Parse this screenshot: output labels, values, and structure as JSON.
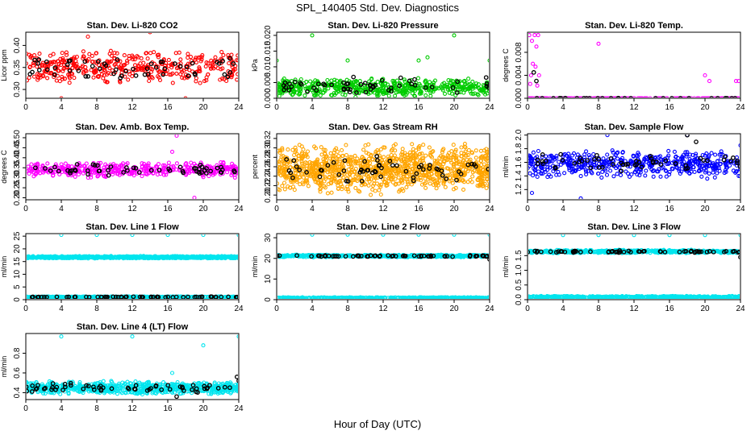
{
  "figure": {
    "title": "SPL_140405  Std. Dev. Diagnostics",
    "xlabel": "Hour of Day (UTC)"
  },
  "colors": {
    "red": "#ff0000",
    "green": "#00cc00",
    "magenta": "#ff00ff",
    "orange": "#ffa500",
    "blue": "#0000ff",
    "cyan": "#00e5ee",
    "black": "#000000"
  },
  "chart_data": [
    {
      "type": "scatter",
      "title": "Stan. Dev. Li-820 CO2",
      "ylabel": "Licor ppm",
      "xlim": [
        0,
        24
      ],
      "xticks": [
        0,
        4,
        8,
        12,
        16,
        20,
        24
      ],
      "ylim": [
        0.28,
        0.43
      ],
      "yticks": [
        0.3,
        0.35,
        0.4
      ],
      "series": [
        {
          "color": "red",
          "band": [
            0.31,
            0.39
          ],
          "count": 420,
          "outliers": [
            [
              7,
              0.42
            ],
            [
              14,
              0.43
            ],
            [
              4,
              0.28
            ],
            [
              18,
              0.28
            ]
          ]
        },
        {
          "color": "black",
          "band": [
            0.32,
            0.38
          ],
          "count": 55,
          "outliers": []
        }
      ]
    },
    {
      "type": "scatter",
      "title": "Stan. Dev. Li-820 Pressure",
      "ylabel": "kPa",
      "xlim": [
        0,
        24
      ],
      "xticks": [
        0,
        4,
        8,
        12,
        16,
        20,
        24
      ],
      "ylim": [
        0,
        0.021
      ],
      "yticks": [
        0.0,
        0.005,
        0.01,
        0.015,
        0.02
      ],
      "series": [
        {
          "color": "green",
          "band": [
            0.0,
            0.0065
          ],
          "count": 520,
          "outliers": [
            [
              0,
              0.012
            ],
            [
              4,
              0.02
            ],
            [
              8,
              0.012
            ],
            [
              16,
              0.012
            ],
            [
              17,
              0.013
            ],
            [
              20,
              0.02
            ],
            [
              24,
              0.012
            ]
          ]
        },
        {
          "color": "black",
          "band": [
            0.001,
            0.007
          ],
          "count": 55,
          "outliers": []
        }
      ]
    },
    {
      "type": "scatter",
      "title": "Stan. Dev. Li-820 Temp.",
      "ylabel": "degrees C",
      "xlim": [
        0,
        24
      ],
      "xticks": [
        0,
        4,
        8,
        12,
        16,
        20,
        24
      ],
      "ylim": [
        0,
        0.0115
      ],
      "yticks": [
        0.0,
        0.004,
        0.008
      ],
      "series": [
        {
          "color": "magenta",
          "band": [
            0,
            0
          ],
          "count": 220,
          "outliers": [
            [
              0.2,
              0.011
            ],
            [
              0.5,
              0.01
            ],
            [
              0.8,
              0.011
            ],
            [
              1.0,
              0.009
            ],
            [
              1.2,
              0.011
            ],
            [
              0.6,
              0.006
            ],
            [
              0.9,
              0.0055
            ],
            [
              1.3,
              0.004
            ],
            [
              0.4,
              0.004
            ],
            [
              0.3,
              0.0025
            ],
            [
              1.1,
              0.0022
            ],
            [
              8,
              0.0095
            ],
            [
              20,
              0.004
            ],
            [
              20.5,
              0.003
            ],
            [
              23.5,
              0.003
            ],
            [
              23.8,
              0.003
            ]
          ]
        },
        {
          "color": "black",
          "band": [
            0,
            0
          ],
          "count": 30,
          "outliers": [
            [
              1.0,
              0.003
            ],
            [
              0.7,
              0.0045
            ]
          ]
        }
      ]
    },
    {
      "type": "scatter",
      "title": "Stan. Dev. Amb. Box Temp.",
      "ylabel": "degrees C",
      "xlim": [
        0,
        24
      ],
      "xticks": [
        0,
        4,
        8,
        12,
        16,
        20,
        24
      ],
      "ylim": [
        0.19,
        0.52
      ],
      "yticks": [
        0.2,
        0.25,
        0.3,
        0.35,
        0.4,
        0.45,
        0.5
      ],
      "series": [
        {
          "color": "magenta",
          "band": [
            0.3,
            0.38
          ],
          "count": 420,
          "outliers": [
            [
              17,
              0.51
            ],
            [
              16.5,
              0.43
            ],
            [
              19,
              0.2
            ]
          ]
        },
        {
          "color": "black",
          "band": [
            0.31,
            0.37
          ],
          "count": 55,
          "outliers": []
        }
      ]
    },
    {
      "type": "scatter",
      "title": "Stan. Dev. Gas Stream RH",
      "ylabel": "percent",
      "xlim": [
        0,
        24
      ],
      "xticks": [
        0,
        4,
        8,
        12,
        16,
        20,
        24
      ],
      "ylim": [
        0.19,
        0.33
      ],
      "yticks": [
        0.2,
        0.22,
        0.24,
        0.26,
        0.28,
        0.3,
        0.32
      ],
      "series": [
        {
          "color": "orange",
          "band": [
            0.2,
            0.31
          ],
          "count": 1100,
          "outliers": []
        },
        {
          "color": "black",
          "band": [
            0.22,
            0.29
          ],
          "count": 60,
          "outliers": []
        }
      ]
    },
    {
      "type": "scatter",
      "title": "Stan. Dev. Sample Flow",
      "ylabel": "ml/min",
      "xlim": [
        0,
        24
      ],
      "xticks": [
        0,
        4,
        8,
        12,
        16,
        20,
        24
      ],
      "ylim": [
        1.05,
        2.02
      ],
      "yticks": [
        1.2,
        1.4,
        1.6,
        1.8,
        2.0
      ],
      "series": [
        {
          "color": "blue",
          "band": [
            1.35,
            1.8
          ],
          "count": 520,
          "outliers": [
            [
              6,
              1.07
            ],
            [
              0.5,
              1.15
            ],
            [
              18,
              2.0
            ],
            [
              9,
              2.0
            ],
            [
              24,
              1.85
            ]
          ]
        },
        {
          "color": "black",
          "band": [
            1.45,
            1.75
          ],
          "count": 55,
          "outliers": [
            [
              18,
              2.0
            ],
            [
              19,
              1.9
            ]
          ]
        }
      ]
    },
    {
      "type": "scatter",
      "title": "Stan. Dev. Line 1 Flow",
      "ylabel": "ml/min",
      "xlim": [
        0,
        24
      ],
      "xticks": [
        0,
        4,
        8,
        12,
        16,
        20,
        24
      ],
      "ylim": [
        0,
        26
      ],
      "yticks": [
        0,
        5,
        10,
        15,
        20,
        25
      ],
      "series": [
        {
          "color": "cyan",
          "band": [
            16.2,
            17.2
          ],
          "count": 800,
          "outliers": [
            [
              4,
              25.5
            ],
            [
              8,
              25.5
            ],
            [
              12,
              25.5
            ],
            [
              16,
              25.5
            ],
            [
              20,
              25.5
            ],
            [
              24,
              25.5
            ]
          ]
        },
        {
          "color": "cyan",
          "band": [
            0.8,
            1.3
          ],
          "count": 500,
          "outliers": []
        },
        {
          "color": "black",
          "band": [
            0.9,
            1.2
          ],
          "count": 60,
          "outliers": []
        }
      ]
    },
    {
      "type": "scatter",
      "title": "Stan. Dev. Line 2 Flow",
      "ylabel": "ml/min",
      "xlim": [
        0,
        24
      ],
      "xticks": [
        0,
        4,
        8,
        12,
        16,
        20,
        24
      ],
      "ylim": [
        0,
        32
      ],
      "yticks": [
        0,
        10,
        20,
        30
      ],
      "series": [
        {
          "color": "cyan",
          "band": [
            20.5,
            21.8
          ],
          "count": 600,
          "outliers": [
            [
              4,
              31.5
            ],
            [
              8,
              31.5
            ],
            [
              12,
              31.5
            ],
            [
              16,
              31.5
            ],
            [
              20,
              31.5
            ],
            [
              24,
              31.5
            ]
          ]
        },
        {
          "color": "cyan",
          "band": [
            0.5,
            1.2
          ],
          "count": 500,
          "outliers": []
        },
        {
          "color": "black",
          "band": [
            20.8,
            21.5
          ],
          "count": 60,
          "outliers": [
            [
              24,
              19.5
            ]
          ]
        }
      ]
    },
    {
      "type": "scatter",
      "title": "Stan. Dev. Line 3 Flow",
      "ylabel": "ml/min",
      "xlim": [
        0,
        24
      ],
      "xticks": [
        0,
        4,
        8,
        12,
        16,
        20,
        24
      ],
      "ylim": [
        0,
        2.25
      ],
      "yticks": [
        0.0,
        0.5,
        1.0,
        1.5
      ],
      "series": [
        {
          "color": "cyan",
          "band": [
            1.58,
            1.7
          ],
          "count": 500,
          "outliers": [
            [
              4,
              2.2
            ],
            [
              8,
              2.2
            ],
            [
              12,
              2.2
            ],
            [
              16,
              2.2
            ],
            [
              20,
              2.2
            ],
            [
              24,
              2.2
            ]
          ]
        },
        {
          "color": "cyan",
          "band": [
            0.05,
            0.13
          ],
          "count": 500,
          "outliers": []
        },
        {
          "color": "black",
          "band": [
            1.6,
            1.68
          ],
          "count": 60,
          "outliers": [
            [
              24,
              1.45
            ]
          ]
        }
      ]
    },
    {
      "type": "scatter",
      "title": "Stan. Dev. Line 4 (LT) Flow",
      "ylabel": "ml/min",
      "xlim": [
        0,
        24
      ],
      "xticks": [
        0,
        4,
        8,
        12,
        16,
        20,
        24
      ],
      "ylim": [
        0.33,
        1.0
      ],
      "yticks": [
        0.4,
        0.6,
        0.8
      ],
      "series": [
        {
          "color": "cyan",
          "band": [
            0.38,
            0.52
          ],
          "count": 700,
          "outliers": [
            [
              4,
              0.97
            ],
            [
              12,
              0.97
            ],
            [
              20,
              0.88
            ],
            [
              16.5,
              0.6
            ],
            [
              24,
              0.97
            ]
          ]
        },
        {
          "color": "black",
          "band": [
            0.4,
            0.5
          ],
          "count": 60,
          "outliers": [
            [
              23.8,
              0.56
            ],
            [
              24,
              0.52
            ],
            [
              17,
              0.36
            ]
          ]
        }
      ]
    }
  ]
}
